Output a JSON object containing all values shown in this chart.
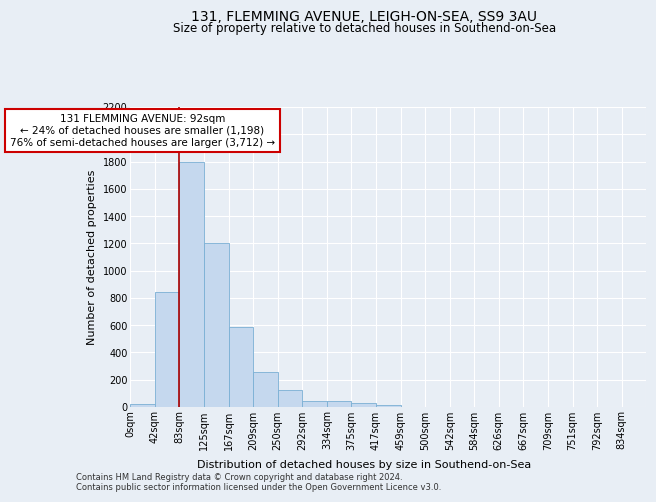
{
  "title": "131, FLEMMING AVENUE, LEIGH-ON-SEA, SS9 3AU",
  "subtitle": "Size of property relative to detached houses in Southend-on-Sea",
  "xlabel": "Distribution of detached houses by size in Southend-on-Sea",
  "ylabel": "Number of detached properties",
  "bar_values": [
    25,
    840,
    1800,
    1200,
    590,
    255,
    125,
    45,
    45,
    30,
    15,
    0,
    0,
    0,
    0,
    0,
    0,
    0,
    0,
    0,
    0
  ],
  "bar_labels": [
    "0sqm",
    "42sqm",
    "83sqm",
    "125sqm",
    "167sqm",
    "209sqm",
    "250sqm",
    "292sqm",
    "334sqm",
    "375sqm",
    "417sqm",
    "459sqm",
    "500sqm",
    "542sqm",
    "584sqm",
    "626sqm",
    "667sqm",
    "709sqm",
    "751sqm",
    "792sqm",
    "834sqm"
  ],
  "bar_color": "#c5d8ee",
  "bar_edge_color": "#7aafd4",
  "vline_x": 2,
  "vline_color": "#aa0000",
  "annotation_text": "131 FLEMMING AVENUE: 92sqm\n← 24% of detached houses are smaller (1,198)\n76% of semi-detached houses are larger (3,712) →",
  "annotation_box_color": "#ffffff",
  "annotation_box_edge": "#cc0000",
  "ylim": [
    0,
    2200
  ],
  "yticks": [
    0,
    200,
    400,
    600,
    800,
    1000,
    1200,
    1400,
    1600,
    1800,
    2000,
    2200
  ],
  "background_color": "#e8eef5",
  "grid_color": "#ffffff",
  "footer_line1": "Contains HM Land Registry data © Crown copyright and database right 2024.",
  "footer_line2": "Contains public sector information licensed under the Open Government Licence v3.0.",
  "title_fontsize": 10,
  "subtitle_fontsize": 8.5,
  "xlabel_fontsize": 8,
  "ylabel_fontsize": 8,
  "tick_fontsize": 7,
  "annot_fontsize": 7.5
}
